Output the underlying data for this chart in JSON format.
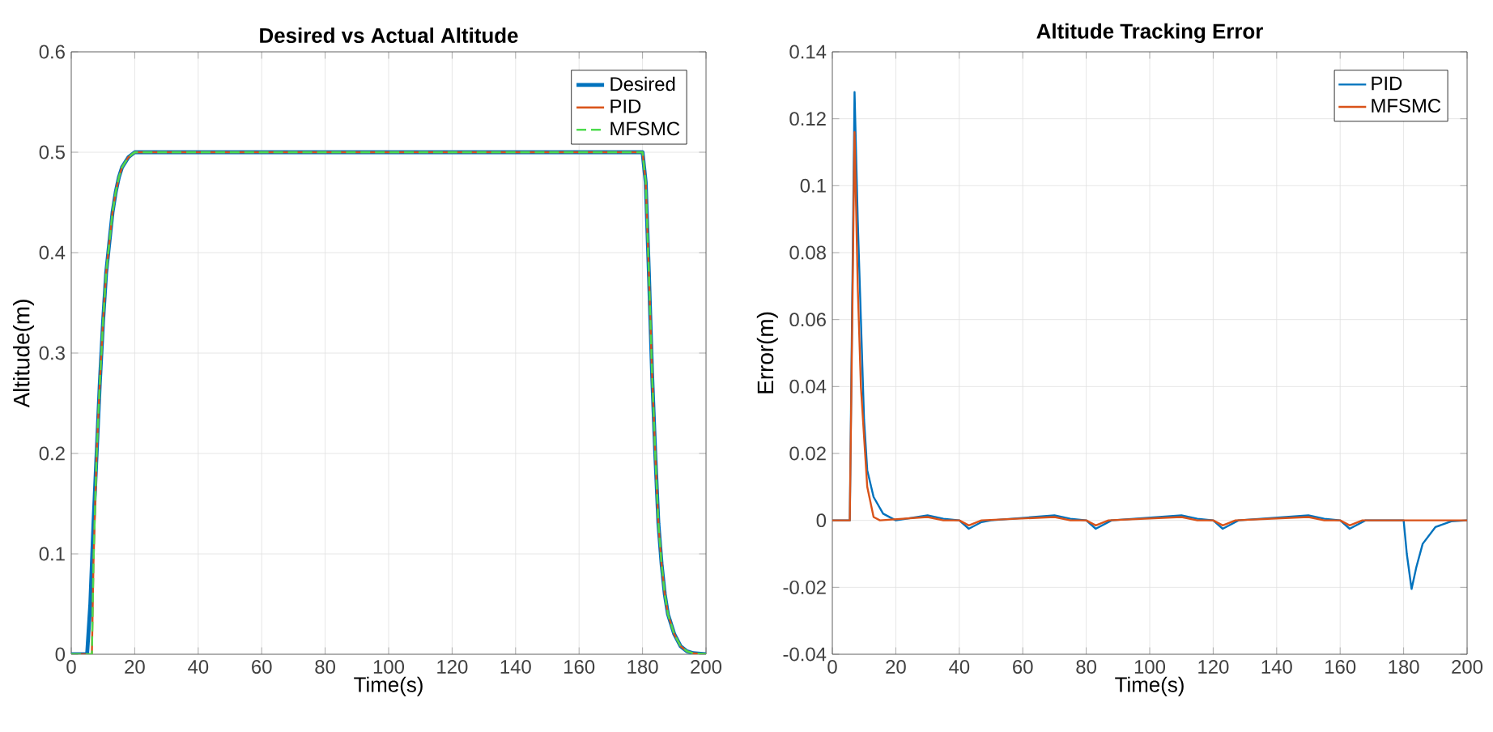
{
  "chart_data": [
    {
      "type": "line",
      "title": "Desired vs Actual Altitude",
      "xlabel": "Time(s)",
      "ylabel": "Altitude(m)",
      "xlim": [
        0,
        200
      ],
      "ylim": [
        0,
        0.6
      ],
      "xticks": [
        0,
        20,
        40,
        60,
        80,
        100,
        120,
        140,
        160,
        180,
        200
      ],
      "yticks": [
        0,
        0.1,
        0.2,
        0.3,
        0.4,
        0.5,
        0.6
      ],
      "grid": true,
      "legend": "top right",
      "series": [
        {
          "name": "Desired",
          "color": "#0072bd",
          "line_style": "solid",
          "x": [
            0,
            5,
            6,
            7,
            8,
            9,
            10,
            11,
            12,
            13,
            14,
            15,
            16,
            18,
            20,
            25,
            180,
            181,
            182,
            183,
            184,
            185,
            186,
            187,
            188,
            190,
            192,
            194,
            196,
            200
          ],
          "values": [
            0,
            0,
            0.05,
            0.13,
            0.2,
            0.27,
            0.33,
            0.38,
            0.41,
            0.44,
            0.46,
            0.475,
            0.485,
            0.495,
            0.5,
            0.5,
            0.5,
            0.47,
            0.38,
            0.28,
            0.2,
            0.13,
            0.09,
            0.06,
            0.04,
            0.02,
            0.008,
            0.003,
            0.001,
            0
          ]
        },
        {
          "name": "PID",
          "color": "#d95319",
          "line_style": "solid",
          "x": [
            0,
            6.5,
            7,
            8,
            9,
            10,
            11,
            12,
            13,
            14,
            15,
            16,
            18,
            20,
            25,
            180,
            181,
            182,
            183,
            184,
            185,
            186,
            187,
            188,
            190,
            192,
            194,
            196,
            200
          ],
          "values": [
            0,
            0,
            0.09,
            0.2,
            0.27,
            0.33,
            0.38,
            0.41,
            0.44,
            0.46,
            0.475,
            0.485,
            0.495,
            0.5,
            0.5,
            0.5,
            0.47,
            0.38,
            0.28,
            0.2,
            0.13,
            0.09,
            0.06,
            0.04,
            0.02,
            0.008,
            0.003,
            0.001,
            0
          ]
        },
        {
          "name": "MFSMC",
          "color": "#4ddb4d",
          "line_style": "dashed",
          "x": [
            0,
            6.5,
            7,
            8,
            9,
            10,
            11,
            12,
            13,
            14,
            15,
            16,
            18,
            20,
            25,
            180,
            181,
            182,
            183,
            184,
            185,
            186,
            187,
            188,
            190,
            192,
            194,
            196,
            200
          ],
          "values": [
            0,
            0,
            0.09,
            0.2,
            0.27,
            0.33,
            0.38,
            0.41,
            0.44,
            0.46,
            0.475,
            0.485,
            0.495,
            0.5,
            0.5,
            0.5,
            0.47,
            0.38,
            0.28,
            0.2,
            0.13,
            0.09,
            0.06,
            0.04,
            0.02,
            0.008,
            0.003,
            0.001,
            0
          ]
        }
      ]
    },
    {
      "type": "line",
      "title": "Altitude Tracking Error",
      "xlabel": "Time(s)",
      "ylabel": "Error(m)",
      "xlim": [
        0,
        200
      ],
      "ylim": [
        -0.04,
        0.14
      ],
      "xticks": [
        0,
        20,
        40,
        60,
        80,
        100,
        120,
        140,
        160,
        180,
        200
      ],
      "yticks": [
        -0.04,
        -0.02,
        0,
        0.02,
        0.04,
        0.06,
        0.08,
        0.1,
        0.12,
        0.14
      ],
      "grid": true,
      "legend": "top right",
      "series": [
        {
          "name": "PID",
          "color": "#0072bd",
          "x": [
            0,
            5.5,
            7,
            8,
            9,
            10,
            11,
            13,
            16,
            20,
            30,
            35,
            40,
            43,
            47,
            50,
            70,
            75,
            80,
            83,
            88,
            110,
            115,
            120,
            123,
            128,
            150,
            155,
            160,
            163,
            168,
            180,
            181,
            182.5,
            184,
            186,
            190,
            195,
            200
          ],
          "values": [
            0,
            0,
            0.128,
            0.09,
            0.06,
            0.03,
            0.015,
            0.007,
            0.002,
            0,
            0.0015,
            0.0005,
            0,
            -0.0025,
            -0.0005,
            0,
            0.0015,
            0.0005,
            0,
            -0.0025,
            0,
            0.0015,
            0.0005,
            0,
            -0.0025,
            0,
            0.0015,
            0.0005,
            0,
            -0.0025,
            0,
            0,
            -0.01,
            -0.0205,
            -0.014,
            -0.007,
            -0.002,
            -0.0003,
            0
          ]
        },
        {
          "name": "MFSMC",
          "color": "#d95319",
          "x": [
            0,
            5.5,
            7,
            8,
            9,
            11,
            13,
            15,
            30,
            35,
            40,
            43,
            47,
            70,
            75,
            80,
            83,
            87,
            110,
            115,
            120,
            123,
            127,
            150,
            155,
            160,
            163,
            167,
            200
          ],
          "values": [
            0,
            0,
            0.116,
            0.07,
            0.04,
            0.01,
            0.001,
            0,
            0.001,
            0,
            0,
            -0.0015,
            0,
            0.001,
            0,
            0,
            -0.0015,
            0,
            0.001,
            0,
            0,
            -0.0015,
            0,
            0.001,
            0,
            0,
            -0.0015,
            0,
            0
          ]
        }
      ]
    }
  ]
}
